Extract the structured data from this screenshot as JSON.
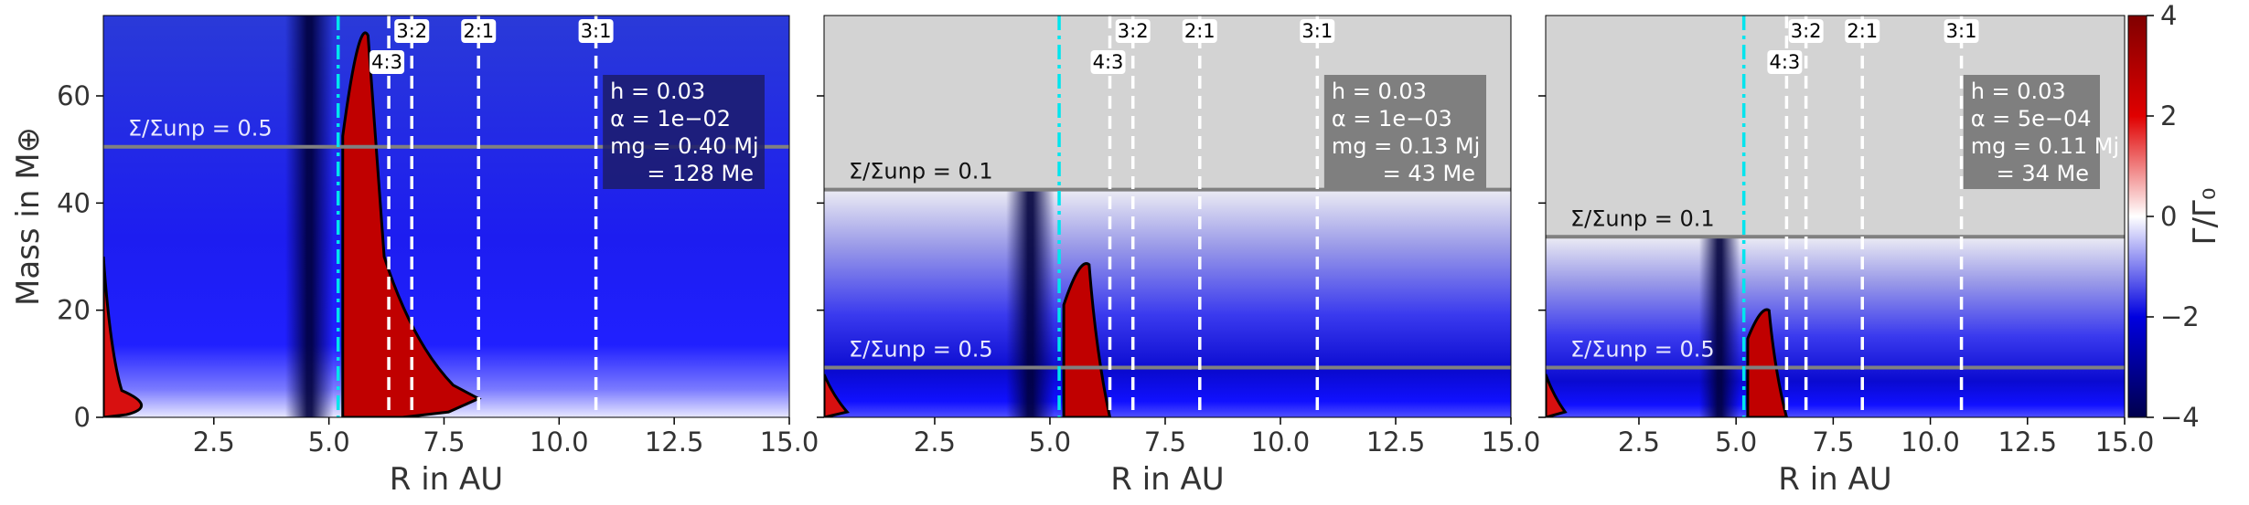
{
  "colors": {
    "background_gray": "#d3d3d3",
    "resonance_line": "#ffffff",
    "planet_line": "#00e5ee",
    "sigma_line": "#808080",
    "box_fill": "#7f7f7f",
    "zero_contour": "#000000"
  },
  "colorbar": {
    "label": "Γ/Γ₀",
    "ticks": [
      "4",
      "2",
      "0",
      "−2",
      "−4"
    ],
    "range": [
      -4,
      4
    ],
    "colormap": "seismic-like: dark blue (−4) → blue → white (0) → red → dark red (4)"
  },
  "chart_data": [
    {
      "type": "heatmap",
      "panel": 1,
      "xlabel": "R in AU",
      "ylabel": "Mass in M⊕",
      "xlim": [
        0.1,
        15.0
      ],
      "ylim": [
        0,
        75
      ],
      "xticks": [
        "2.5",
        "5.0",
        "7.5",
        "10.0",
        "12.5",
        "15.0"
      ],
      "yticks": [
        "0",
        "20",
        "40",
        "60"
      ],
      "planet_position_au": 5.2,
      "resonances": [
        {
          "label": "4:3",
          "r_au": 6.3
        },
        {
          "label": "3:2",
          "r_au": 6.8
        },
        {
          "label": "2:1",
          "r_au": 8.25
        },
        {
          "label": "3:1",
          "r_au": 10.8
        }
      ],
      "sigma_lines": [
        {
          "label": "Σ/Σunp = 0.5",
          "mass": 50.5
        }
      ],
      "info_box": [
        "h = 0.03",
        "α = 1e−02",
        "mg = 0.40 Mj",
        "= 128 Me"
      ],
      "gap_gray_above_mass": null
    },
    {
      "type": "heatmap",
      "panel": 2,
      "xlabel": "R in AU",
      "ylabel": "",
      "xlim": [
        0.1,
        15.0
      ],
      "ylim": [
        0,
        75
      ],
      "xticks": [
        "2.5",
        "5.0",
        "7.5",
        "10.0",
        "12.5",
        "15.0"
      ],
      "yticks": [],
      "planet_position_au": 5.2,
      "resonances": [
        {
          "label": "4:3",
          "r_au": 6.3
        },
        {
          "label": "3:2",
          "r_au": 6.8
        },
        {
          "label": "2:1",
          "r_au": 8.25
        },
        {
          "label": "3:1",
          "r_au": 10.8
        }
      ],
      "sigma_lines": [
        {
          "label": "Σ/Σunp = 0.1",
          "mass": 42.5
        },
        {
          "label": "Σ/Σunp = 0.5",
          "mass": 9.3
        }
      ],
      "info_box": [
        "h = 0.03",
        "α = 1e−03",
        "mg = 0.13 Mj",
        "= 43 Me"
      ],
      "gap_gray_above_mass": 42.5
    },
    {
      "type": "heatmap",
      "panel": 3,
      "xlabel": "R in AU",
      "ylabel": "",
      "xlim": [
        0.1,
        15.0
      ],
      "ylim": [
        0,
        75
      ],
      "xticks": [
        "2.5",
        "5.0",
        "7.5",
        "10.0",
        "12.5",
        "15.0"
      ],
      "yticks": [],
      "planet_position_au": 5.2,
      "resonances": [
        {
          "label": "4:3",
          "r_au": 6.3
        },
        {
          "label": "3:2",
          "r_au": 6.8
        },
        {
          "label": "2:1",
          "r_au": 8.25
        },
        {
          "label": "3:1",
          "r_au": 10.8
        }
      ],
      "sigma_lines": [
        {
          "label": "Σ/Σunp = 0.1",
          "mass": 33.7
        },
        {
          "label": "Σ/Σunp = 0.5",
          "mass": 9.3
        }
      ],
      "info_box": [
        "h = 0.03",
        "α = 5e−04",
        "mg = 0.11 Mj",
        "= 34 Me"
      ],
      "gap_gray_above_mass": 33.7
    }
  ]
}
